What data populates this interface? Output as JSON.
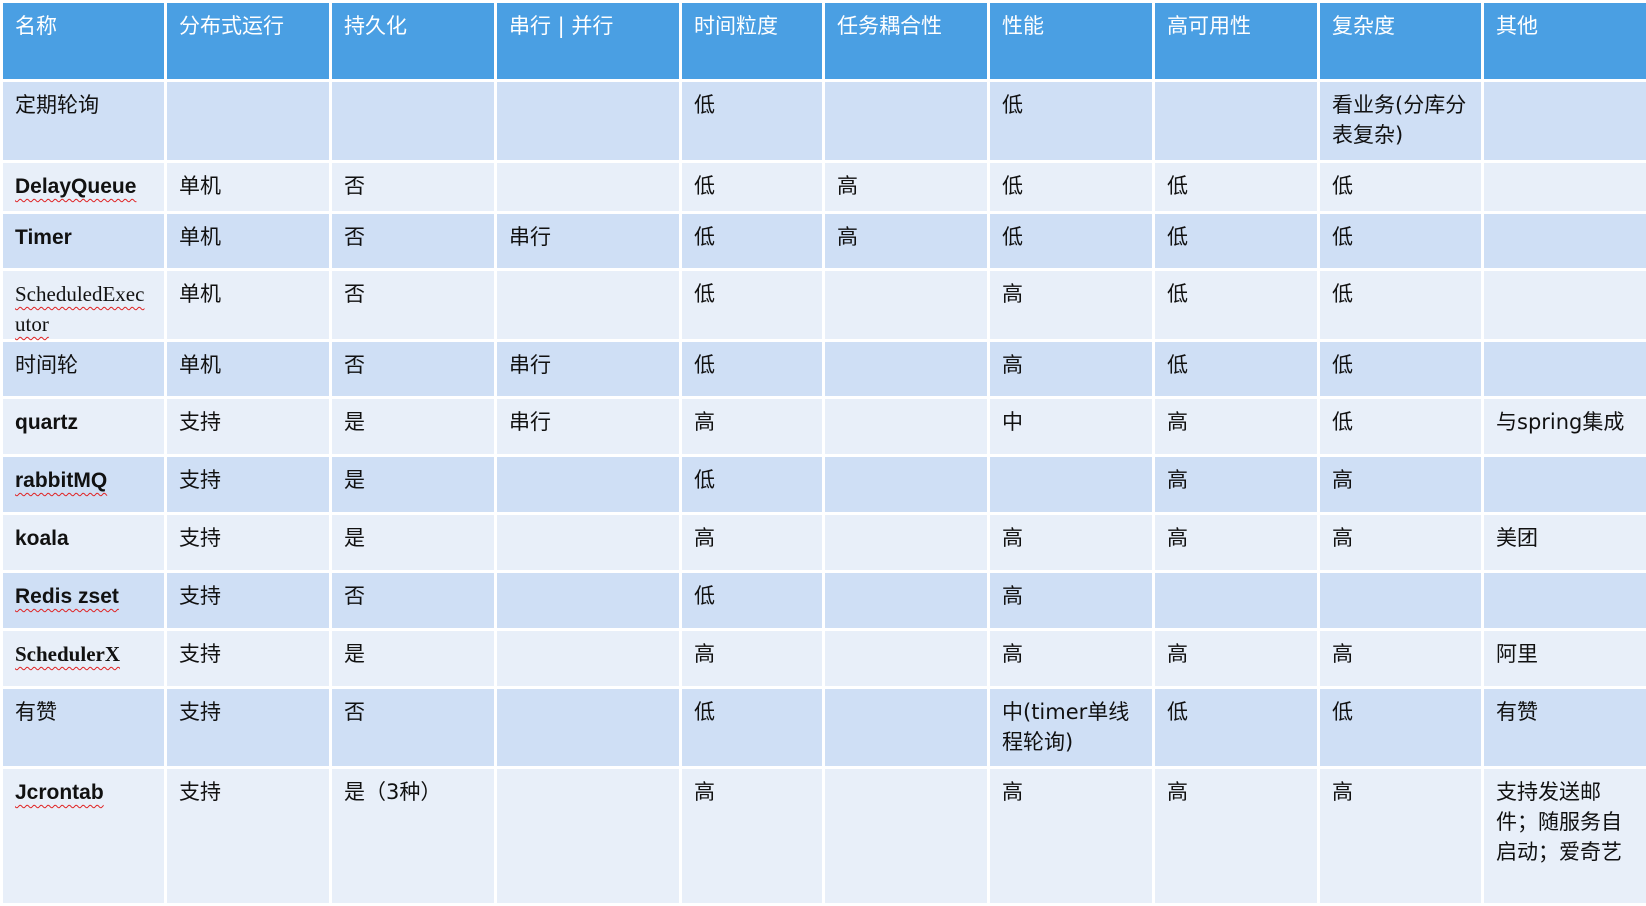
{
  "table": {
    "headers": [
      "名称",
      "分布式运行",
      "持久化",
      "串行 | 并行",
      "时间粒度",
      "任务耦合性",
      "性能",
      "高可用性",
      "复杂度",
      "其他"
    ],
    "rows": [
      {
        "cells": [
          "定期轮询",
          "",
          "",
          "",
          "低",
          "",
          "低",
          "",
          "看业务(分库分表复杂)",
          ""
        ]
      },
      {
        "cells": [
          "DelayQueue",
          "单机",
          "否",
          "",
          "低",
          "高",
          "低",
          "低",
          "低",
          ""
        ]
      },
      {
        "cells": [
          "Timer",
          "单机",
          "否",
          "串行",
          "低",
          "高",
          "低",
          "低",
          "低",
          ""
        ]
      },
      {
        "cells": [
          "ScheduledExecutor",
          "单机",
          "否",
          "",
          "低",
          "",
          "高",
          "低",
          "低",
          ""
        ]
      },
      {
        "cells": [
          "时间轮",
          "单机",
          "否",
          "串行",
          "低",
          "",
          "高",
          "低",
          "低",
          ""
        ]
      },
      {
        "cells": [
          "quartz",
          "支持",
          "是",
          "串行",
          "高",
          "",
          "中",
          "高",
          "低",
          "与spring集成"
        ]
      },
      {
        "cells": [
          "rabbitMQ",
          "支持",
          "是",
          "",
          "低",
          "",
          "",
          "高",
          "高",
          ""
        ]
      },
      {
        "cells": [
          "koala",
          "支持",
          "是",
          "",
          "高",
          "",
          "高",
          "高",
          "高",
          "美团"
        ]
      },
      {
        "cells": [
          "Redis zset",
          "支持",
          "否",
          "",
          "低",
          "",
          "高",
          "",
          "",
          ""
        ]
      },
      {
        "cells": [
          "SchedulerX",
          "支持",
          "是",
          "",
          "高",
          "",
          "高",
          "高",
          "高",
          "阿里"
        ]
      },
      {
        "cells": [
          "有赞",
          "支持",
          "否",
          "",
          "低",
          "",
          "中(timer单线程轮询)",
          "低",
          "低",
          "有赞"
        ]
      },
      {
        "cells": [
          "Jcrontab",
          "支持",
          "是（3种）",
          "",
          "高",
          "",
          "高",
          "高",
          "高",
          "支持发送邮件；随服务自启动；爱奇艺"
        ]
      }
    ]
  },
  "colors": {
    "header": "#4a9fe3",
    "row_dark": "#cfdff5",
    "row_light": "#e8eff9",
    "spellcheck": "#e02020"
  }
}
